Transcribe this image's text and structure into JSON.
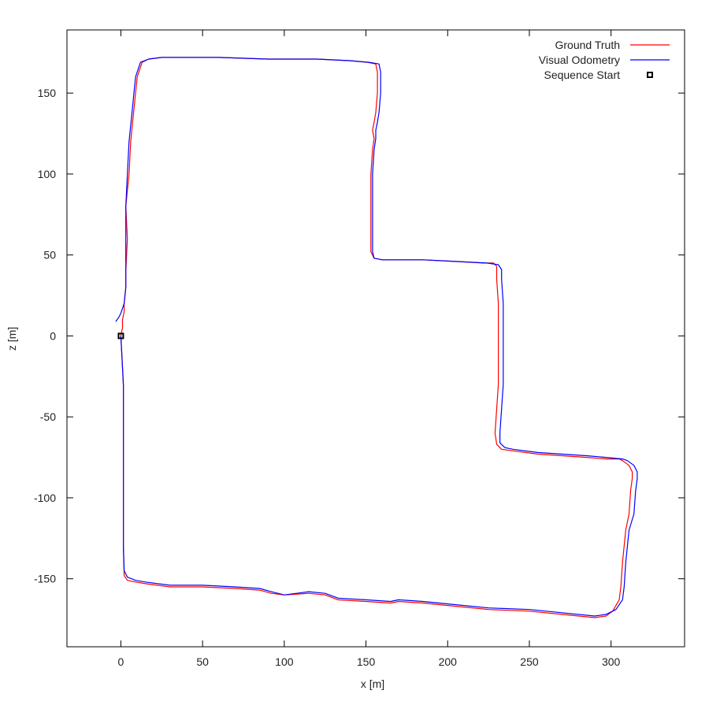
{
  "chart_data": {
    "type": "line",
    "title": "",
    "xlabel": "x [m]",
    "ylabel": "z [m]",
    "xlim": [
      -33,
      345
    ],
    "ylim": [
      -192,
      189
    ],
    "xticks": [
      0,
      50,
      100,
      150,
      200,
      250,
      300
    ],
    "yticks": [
      -150,
      -100,
      -50,
      0,
      50,
      100,
      150
    ],
    "grid": false,
    "legend_position": "top-right",
    "series": [
      {
        "name": "Ground Truth",
        "color": "#ff0000",
        "x": [
          0,
          0.5,
          1.5,
          1.5,
          1.5,
          1.5,
          2,
          4,
          9,
          15,
          30,
          50,
          70,
          85,
          92,
          100,
          115,
          125,
          133,
          150,
          165,
          170,
          185,
          205,
          225,
          250,
          270,
          290,
          297,
          301,
          305,
          306,
          307,
          309,
          311,
          312,
          313,
          313,
          311,
          307,
          305,
          297,
          285,
          255,
          240,
          233,
          230,
          229,
          230,
          231,
          231,
          231,
          230,
          230,
          228,
          222,
          205,
          185,
          170,
          160,
          155,
          153,
          153,
          153,
          153,
          154,
          155,
          154,
          155,
          156,
          157,
          157,
          156,
          151,
          140,
          120,
          90,
          60,
          40,
          25,
          17,
          13,
          10,
          9,
          8,
          6,
          5,
          3,
          4,
          3,
          3,
          2,
          2,
          1,
          1,
          0
        ],
        "y": [
          0,
          -10,
          -30,
          -60,
          -100,
          -130,
          -148,
          -151,
          -152,
          -153,
          -155,
          -155,
          -156,
          -157,
          -159,
          -160,
          -159,
          -160,
          -163,
          -164,
          -165,
          -164,
          -165,
          -167,
          -169,
          -170,
          -172,
          -174,
          -173,
          -170,
          -163,
          -155,
          -140,
          -120,
          -110,
          -95,
          -88,
          -84,
          -80,
          -77,
          -76,
          -76,
          -75,
          -73,
          -71,
          -70,
          -67,
          -60,
          -45,
          -30,
          -10,
          20,
          35,
          43,
          45,
          45,
          46,
          47,
          47,
          47,
          48,
          52,
          60,
          80,
          100,
          115,
          122,
          127,
          132,
          138,
          150,
          163,
          168,
          169,
          170,
          171,
          171,
          172,
          172,
          172,
          171,
          169,
          160,
          150,
          140,
          120,
          100,
          80,
          60,
          40,
          30,
          20,
          15,
          10,
          5,
          0
        ]
      },
      {
        "name": "Visual Odometry",
        "color": "#0000ff",
        "x": [
          0,
          0.5,
          1.5,
          1.5,
          1.5,
          1.5,
          2,
          4,
          9,
          15,
          30,
          50,
          70,
          85,
          92,
          100,
          115,
          125,
          133,
          150,
          165,
          170,
          185,
          205,
          225,
          250,
          270,
          290,
          297,
          303,
          307,
          308,
          309,
          311,
          314,
          315,
          316,
          316,
          314,
          310,
          307,
          297,
          285,
          255,
          240,
          235,
          232,
          232,
          233,
          234,
          234,
          234,
          233,
          233,
          231,
          224,
          205,
          185,
          170,
          160,
          155,
          154,
          154,
          154,
          154,
          155,
          156,
          156,
          157,
          158,
          159,
          159,
          158,
          152,
          140,
          120,
          90,
          60,
          40,
          25,
          17,
          12,
          9,
          8,
          7,
          5,
          4,
          3,
          3,
          3,
          3,
          2,
          1,
          0,
          -1,
          -3
        ],
        "y": [
          0,
          -10,
          -30,
          -60,
          -100,
          -130,
          -145,
          -149,
          -151,
          -152,
          -154,
          -154,
          -155,
          -156,
          -158,
          -160,
          -158,
          -159,
          -162,
          -163,
          -164,
          -163,
          -164,
          -166,
          -168,
          -169,
          -171,
          -173,
          -172,
          -169,
          -163,
          -155,
          -140,
          -120,
          -110,
          -96,
          -88,
          -84,
          -80,
          -77,
          -76,
          -75,
          -74,
          -72,
          -70,
          -69,
          -66,
          -60,
          -45,
          -30,
          -10,
          20,
          35,
          41,
          44,
          45,
          46,
          47,
          47,
          47,
          48,
          52,
          60,
          80,
          100,
          115,
          122,
          127,
          132,
          138,
          150,
          163,
          168,
          169,
          170,
          171,
          171,
          172,
          172,
          172,
          171,
          169,
          160,
          150,
          140,
          120,
          100,
          80,
          60,
          40,
          30,
          20,
          17,
          14,
          12,
          9
        ]
      }
    ],
    "markers": [
      {
        "name": "Sequence Start",
        "x": 0,
        "y": 0,
        "shape": "square"
      }
    ]
  }
}
